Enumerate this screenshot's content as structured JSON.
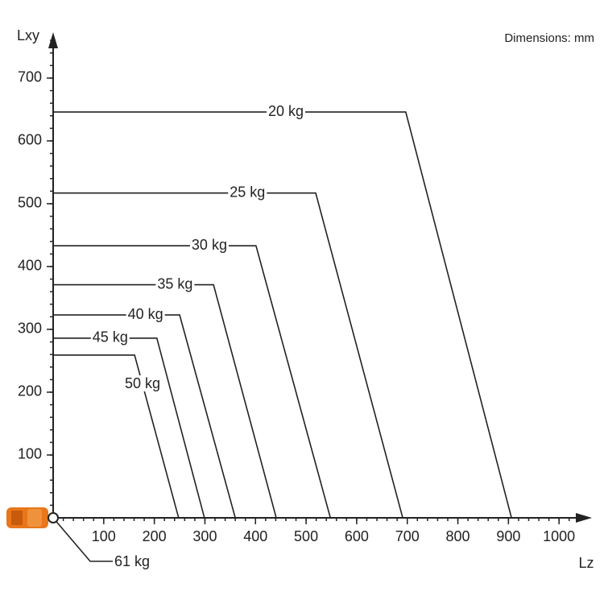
{
  "chart_data": {
    "type": "line",
    "x_label": "Lz",
    "y_label": "Lxy",
    "note": "Dimensions: mm",
    "xlim": [
      0,
      1065
    ],
    "ylim": [
      0,
      773
    ],
    "xticks": [
      100,
      200,
      300,
      400,
      500,
      600,
      700,
      800,
      900,
      1000
    ],
    "yticks": [
      100,
      200,
      300,
      400,
      500,
      600,
      700
    ],
    "series": [
      {
        "name": "20 kg",
        "x": [
          0,
          697,
          906
        ],
        "y": [
          646,
          646,
          0
        ]
      },
      {
        "name": "25 kg",
        "x": [
          0,
          519,
          691
        ],
        "y": [
          517,
          517,
          0
        ]
      },
      {
        "name": "30 kg",
        "x": [
          0,
          401,
          548
        ],
        "y": [
          433,
          433,
          0
        ]
      },
      {
        "name": "35 kg",
        "x": [
          0,
          317,
          441
        ],
        "y": [
          371,
          371,
          0
        ]
      },
      {
        "name": "40 kg",
        "x": [
          0,
          250,
          360
        ],
        "y": [
          323,
          323,
          0
        ]
      },
      {
        "name": "45 kg",
        "x": [
          0,
          205,
          299
        ],
        "y": [
          286,
          286,
          0
        ]
      },
      {
        "name": "50 kg",
        "x": [
          0,
          161,
          248
        ],
        "y": [
          259,
          259,
          0
        ]
      },
      {
        "name": "61 kg",
        "x": [
          0
        ],
        "y": [
          0
        ]
      }
    ]
  }
}
